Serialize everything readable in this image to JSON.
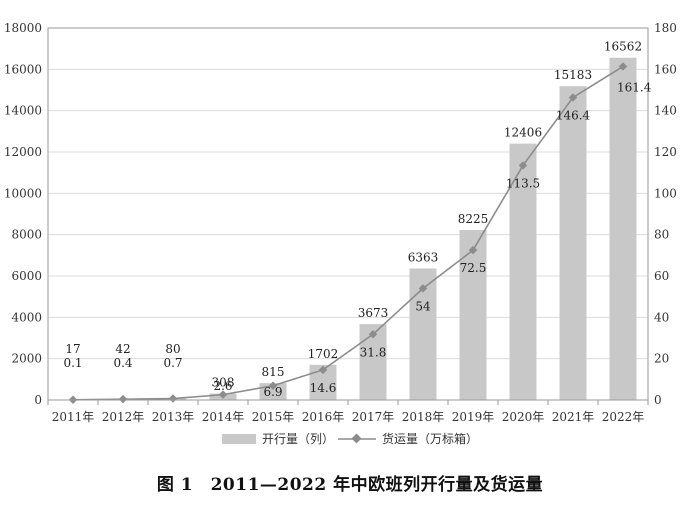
{
  "caption": "图 1　2011—2022 年中欧班列开行量及货运量",
  "chart_data": {
    "type": "bar",
    "categories": [
      "2011年",
      "2012年",
      "2013年",
      "2014年",
      "2015年",
      "2016年",
      "2017年",
      "2018年",
      "2019年",
      "2020年",
      "2021年",
      "2022年"
    ],
    "series": [
      {
        "name": "开行量（列）",
        "type": "bar",
        "axis": "left",
        "values": [
          17,
          42,
          80,
          308,
          815,
          1702,
          3673,
          6363,
          8225,
          12406,
          15183,
          16562
        ],
        "color": "#c8c8c8"
      },
      {
        "name": "货运量（万标箱）",
        "type": "line",
        "axis": "right",
        "values": [
          0.1,
          0.4,
          0.7,
          2.6,
          6.9,
          14.6,
          31.8,
          54,
          72.5,
          113.5,
          146.4,
          161.4
        ],
        "color": "#8c8c8c"
      }
    ],
    "y_left": {
      "min": 0,
      "max": 18000,
      "ticks": [
        0,
        2000,
        4000,
        6000,
        8000,
        10000,
        12000,
        14000,
        16000,
        18000
      ]
    },
    "y_right": {
      "min": 0,
      "max": 180,
      "ticks": [
        0,
        20,
        40,
        60,
        80,
        100,
        120,
        140,
        160,
        180
      ]
    },
    "grid": true,
    "legend": "bottom"
  }
}
